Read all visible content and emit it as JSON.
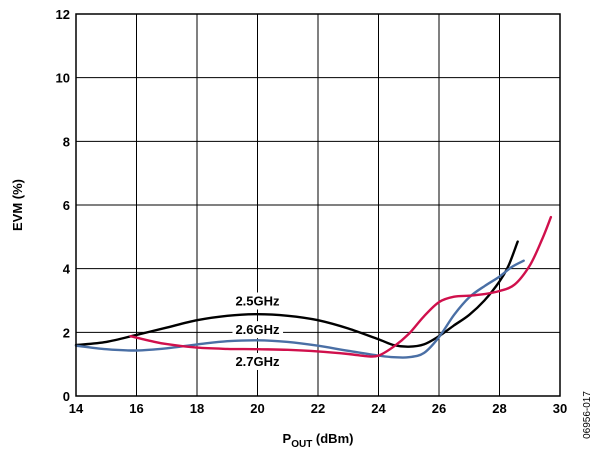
{
  "chart_data": {
    "type": "line",
    "title": "",
    "xlabel_main": "P",
    "xlabel_sub": "OUT",
    "xlabel_unit": " (dBm)",
    "ylabel": "EVM (%)",
    "xlim": [
      14,
      30
    ],
    "ylim": [
      0,
      12
    ],
    "x_ticks": [
      "14",
      "16",
      "18",
      "20",
      "22",
      "24",
      "26",
      "28",
      "30"
    ],
    "y_ticks": [
      "0",
      "2",
      "4",
      "6",
      "8",
      "10",
      "12"
    ],
    "grid": true,
    "legend": "none",
    "figure_id": "06956-017",
    "series": [
      {
        "name": "2.5GHz",
        "color": "#000000",
        "points": [
          [
            14,
            1.6
          ],
          [
            15,
            1.7
          ],
          [
            16,
            1.92
          ],
          [
            17,
            2.15
          ],
          [
            18,
            2.38
          ],
          [
            19,
            2.52
          ],
          [
            20,
            2.57
          ],
          [
            21,
            2.52
          ],
          [
            22,
            2.38
          ],
          [
            23,
            2.12
          ],
          [
            24,
            1.78
          ],
          [
            24.5,
            1.6
          ],
          [
            25,
            1.55
          ],
          [
            25.5,
            1.62
          ],
          [
            26,
            1.88
          ],
          [
            26.5,
            2.22
          ],
          [
            27,
            2.55
          ],
          [
            27.5,
            3.0
          ],
          [
            28,
            3.6
          ],
          [
            28.3,
            4.1
          ],
          [
            28.6,
            4.85
          ]
        ]
      },
      {
        "name": "2.6GHz",
        "color": "#4a6fa5",
        "points": [
          [
            14,
            1.58
          ],
          [
            15,
            1.47
          ],
          [
            16,
            1.43
          ],
          [
            17,
            1.5
          ],
          [
            18,
            1.62
          ],
          [
            19,
            1.72
          ],
          [
            20,
            1.75
          ],
          [
            21,
            1.7
          ],
          [
            22,
            1.58
          ],
          [
            23,
            1.42
          ],
          [
            24,
            1.27
          ],
          [
            24.5,
            1.22
          ],
          [
            25,
            1.22
          ],
          [
            25.5,
            1.35
          ],
          [
            26,
            1.85
          ],
          [
            26.5,
            2.55
          ],
          [
            27,
            3.1
          ],
          [
            27.5,
            3.45
          ],
          [
            28,
            3.75
          ],
          [
            28.4,
            4.05
          ],
          [
            28.8,
            4.25
          ]
        ]
      },
      {
        "name": "2.7GHz",
        "color": "#d0104c",
        "points": [
          [
            15.8,
            1.88
          ],
          [
            16.5,
            1.72
          ],
          [
            17,
            1.63
          ],
          [
            18,
            1.52
          ],
          [
            19,
            1.48
          ],
          [
            20,
            1.47
          ],
          [
            21,
            1.45
          ],
          [
            22,
            1.4
          ],
          [
            23,
            1.32
          ],
          [
            23.6,
            1.25
          ],
          [
            24,
            1.27
          ],
          [
            24.5,
            1.55
          ],
          [
            25,
            1.95
          ],
          [
            25.5,
            2.5
          ],
          [
            26,
            2.95
          ],
          [
            26.5,
            3.12
          ],
          [
            27,
            3.15
          ],
          [
            27.5,
            3.2
          ],
          [
            28,
            3.3
          ],
          [
            28.5,
            3.5
          ],
          [
            29,
            4.1
          ],
          [
            29.4,
            4.9
          ],
          [
            29.7,
            5.62
          ]
        ]
      }
    ],
    "annotations": [
      {
        "text": "2.5GHz",
        "x": 20,
        "y": 3.0
      },
      {
        "text": "2.6GHz",
        "x": 20,
        "y": 2.1
      },
      {
        "text": "2.7GHz",
        "x": 20,
        "y": 1.1
      }
    ]
  }
}
